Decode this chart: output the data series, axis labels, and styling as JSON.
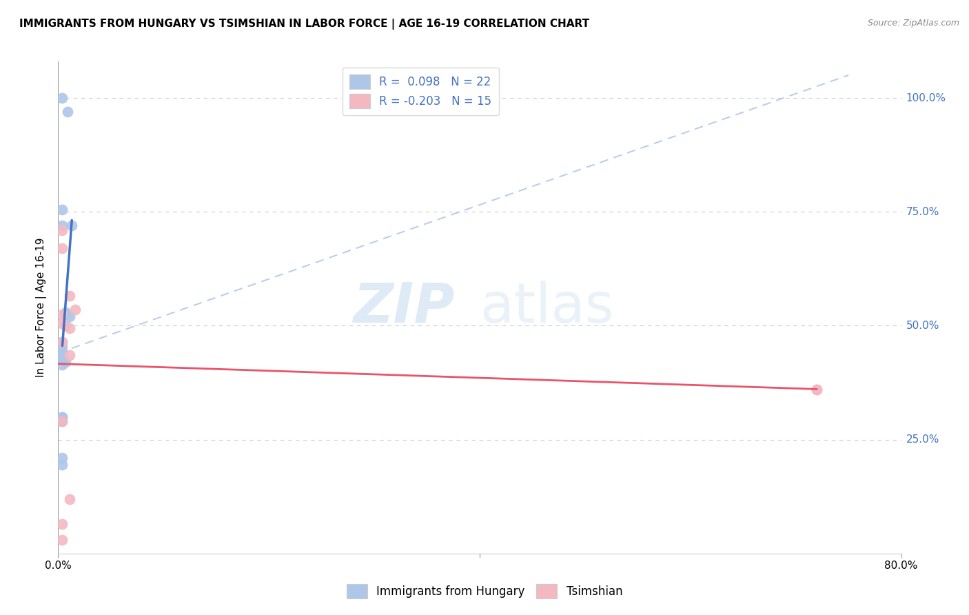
{
  "title": "IMMIGRANTS FROM HUNGARY VS TSIMSHIAN IN LABOR FORCE | AGE 16-19 CORRELATION CHART",
  "source": "Source: ZipAtlas.com",
  "ylabel": "In Labor Force | Age 16-19",
  "xlim": [
    0.0,
    0.8
  ],
  "ylim": [
    0.0,
    1.08
  ],
  "yticks": [
    0.25,
    0.5,
    0.75,
    1.0
  ],
  "ytick_labels": [
    "25.0%",
    "50.0%",
    "75.0%",
    "100.0%"
  ],
  "xticks": [
    0.0,
    0.4,
    0.8
  ],
  "xtick_labels": [
    "0.0%",
    "",
    "80.0%"
  ],
  "hungary_color": "#aec6e8",
  "tsimshian_color": "#f4b8c1",
  "hungary_line_color": "#4472c4",
  "tsimshian_line_color": "#e8546a",
  "dashed_line_color": "#aec6e8",
  "watermark_zip": "ZIP",
  "watermark_atlas": "atlas",
  "hungary_x": [
    0.004,
    0.009,
    0.004,
    0.004,
    0.013,
    0.007,
    0.007,
    0.011,
    0.007,
    0.004,
    0.004,
    0.004,
    0.004,
    0.004,
    0.004,
    0.007,
    0.004,
    0.004,
    0.004,
    0.004,
    0.004,
    0.004
  ],
  "hungary_y": [
    1.0,
    0.97,
    0.755,
    0.72,
    0.72,
    0.53,
    0.525,
    0.52,
    0.5,
    0.465,
    0.455,
    0.445,
    0.44,
    0.435,
    0.43,
    0.42,
    0.415,
    0.3,
    0.29,
    0.3,
    0.21,
    0.195
  ],
  "tsimshian_x": [
    0.004,
    0.004,
    0.011,
    0.016,
    0.004,
    0.004,
    0.011,
    0.004,
    0.011,
    0.72,
    0.72,
    0.004,
    0.011,
    0.004,
    0.004
  ],
  "tsimshian_y": [
    0.71,
    0.67,
    0.565,
    0.535,
    0.525,
    0.505,
    0.495,
    0.465,
    0.435,
    0.36,
    0.36,
    0.29,
    0.12,
    0.065,
    0.03
  ]
}
